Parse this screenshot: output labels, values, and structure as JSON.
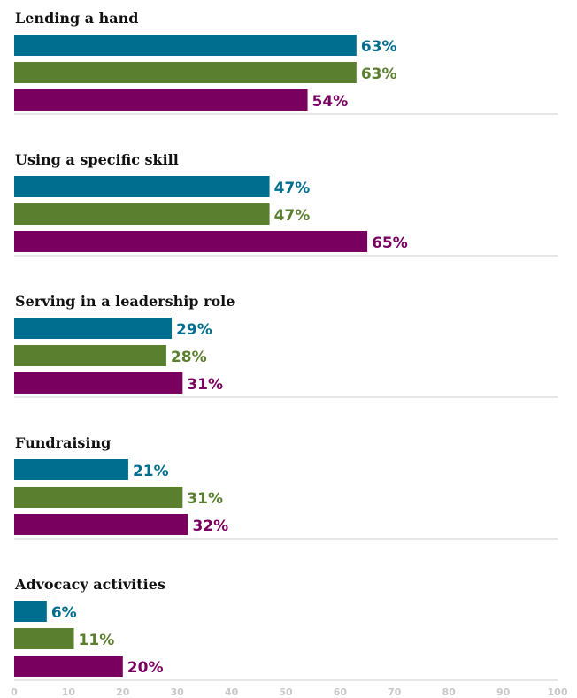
{
  "chart_data": {
    "type": "bar",
    "orientation": "horizontal",
    "categories": [
      "Lending a hand",
      "Using a specific skill",
      "Serving in a leadership role",
      "Fundraising",
      "Advocacy activities"
    ],
    "series": [
      {
        "color": "#006e8e",
        "values": [
          63,
          47,
          29,
          21,
          6
        ]
      },
      {
        "color": "#5a7f2f",
        "values": [
          63,
          47,
          28,
          31,
          11
        ]
      },
      {
        "color": "#7a0060",
        "values": [
          54,
          65,
          31,
          32,
          20
        ]
      }
    ],
    "value_suffix": "%",
    "xlim": [
      0,
      100
    ],
    "xticks": [
      0,
      10,
      20,
      30,
      40,
      50,
      60,
      70,
      80,
      90,
      100
    ],
    "grid": false,
    "legend": "none",
    "separator_color": "#cccccc"
  }
}
